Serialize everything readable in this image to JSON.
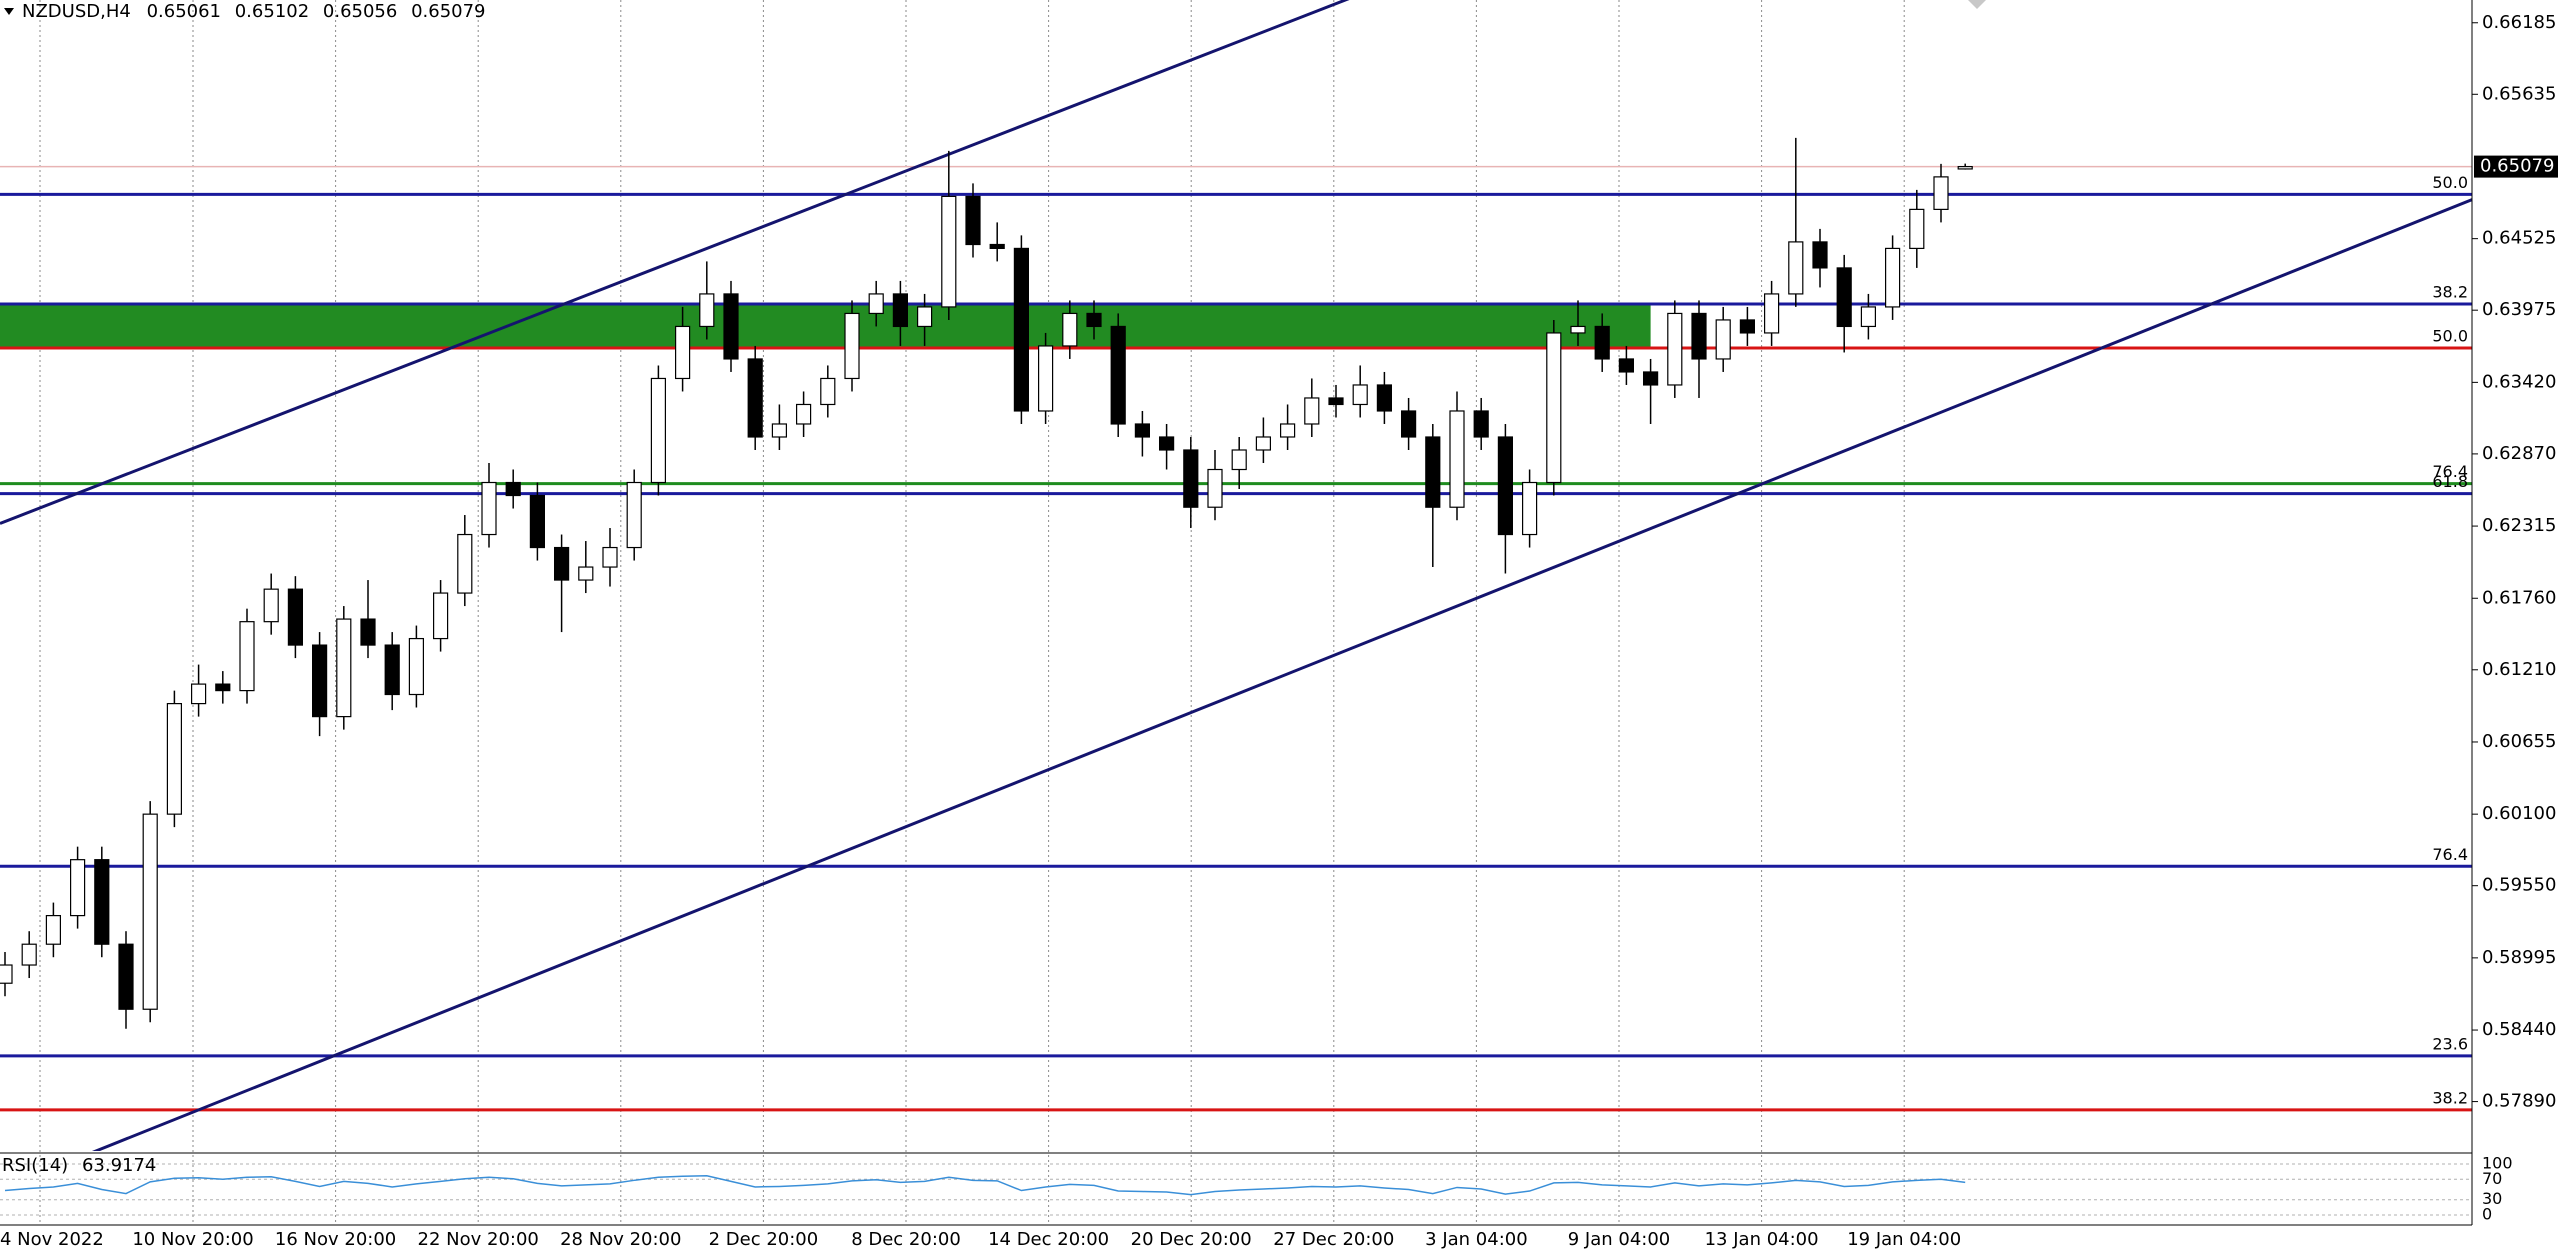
{
  "chart_data": {
    "type": "candlestick",
    "title": "NZDUSD,H4",
    "open": [
      0.588,
      0.5894,
      0.591,
      0.5932,
      0.5975,
      0.591,
      0.586,
      0.601,
      0.6095,
      0.611,
      0.6105,
      0.6158,
      0.6183,
      0.614,
      0.6085,
      0.616,
      0.614,
      0.6102,
      0.6145,
      0.618,
      0.6225,
      0.6265,
      0.6255,
      0.6215,
      0.619,
      0.62,
      0.6215,
      0.6265,
      0.6345,
      0.6385,
      0.641,
      0.636,
      0.63,
      0.631,
      0.6325,
      0.6345,
      0.6395,
      0.641,
      0.6385,
      0.64,
      0.6485,
      0.6448,
      0.6445,
      0.632,
      0.637,
      0.6395,
      0.6385,
      0.631,
      0.63,
      0.629,
      0.6246,
      0.6275,
      0.629,
      0.63,
      0.631,
      0.633,
      0.6325,
      0.634,
      0.632,
      0.63,
      0.6246,
      0.632,
      0.63,
      0.6225,
      0.6265,
      0.638,
      0.6385,
      0.636,
      0.635,
      0.634,
      0.6395,
      0.636,
      0.639,
      0.638,
      0.641,
      0.645,
      0.643,
      0.6385,
      0.64,
      0.6445,
      0.6475,
      0.65061
    ],
    "high": [
      0.5904,
      0.592,
      0.5942,
      0.5985,
      0.5985,
      0.592,
      0.602,
      0.6105,
      0.6125,
      0.612,
      0.6168,
      0.6195,
      0.6193,
      0.615,
      0.617,
      0.619,
      0.615,
      0.6155,
      0.619,
      0.624,
      0.628,
      0.6275,
      0.6265,
      0.6225,
      0.622,
      0.623,
      0.6275,
      0.6355,
      0.64,
      0.6435,
      0.642,
      0.637,
      0.6325,
      0.6335,
      0.6355,
      0.6405,
      0.642,
      0.642,
      0.641,
      0.652,
      0.6495,
      0.6465,
      0.6455,
      0.638,
      0.6405,
      0.6405,
      0.6395,
      0.632,
      0.631,
      0.63,
      0.629,
      0.63,
      0.6315,
      0.6325,
      0.6345,
      0.634,
      0.6355,
      0.635,
      0.633,
      0.631,
      0.6335,
      0.633,
      0.631,
      0.6275,
      0.639,
      0.6405,
      0.6395,
      0.637,
      0.636,
      0.6405,
      0.6405,
      0.64,
      0.64,
      0.642,
      0.653,
      0.646,
      0.644,
      0.641,
      0.6455,
      0.649,
      0.651,
      0.65102
    ],
    "low": [
      0.587,
      0.5884,
      0.59,
      0.5922,
      0.59,
      0.5845,
      0.585,
      0.6,
      0.6085,
      0.6095,
      0.6095,
      0.6148,
      0.613,
      0.607,
      0.6075,
      0.613,
      0.609,
      0.6092,
      0.6135,
      0.617,
      0.6215,
      0.6245,
      0.6205,
      0.615,
      0.618,
      0.6185,
      0.6205,
      0.6255,
      0.6335,
      0.6375,
      0.635,
      0.629,
      0.629,
      0.63,
      0.6315,
      0.6335,
      0.6385,
      0.637,
      0.637,
      0.639,
      0.6438,
      0.6435,
      0.631,
      0.631,
      0.636,
      0.6375,
      0.63,
      0.6285,
      0.6275,
      0.623,
      0.6236,
      0.626,
      0.628,
      0.629,
      0.63,
      0.6315,
      0.6315,
      0.631,
      0.629,
      0.62,
      0.6236,
      0.629,
      0.6195,
      0.6215,
      0.6255,
      0.637,
      0.635,
      0.634,
      0.631,
      0.633,
      0.633,
      0.635,
      0.637,
      0.637,
      0.64,
      0.6415,
      0.6365,
      0.6375,
      0.639,
      0.643,
      0.6465,
      0.65056
    ],
    "close": [
      0.5894,
      0.591,
      0.5932,
      0.5975,
      0.591,
      0.586,
      0.601,
      0.6095,
      0.611,
      0.6105,
      0.6158,
      0.6183,
      0.614,
      0.6085,
      0.616,
      0.614,
      0.6102,
      0.6145,
      0.618,
      0.6225,
      0.6265,
      0.6255,
      0.6215,
      0.619,
      0.62,
      0.6215,
      0.6265,
      0.6345,
      0.6385,
      0.641,
      0.636,
      0.63,
      0.631,
      0.6325,
      0.6345,
      0.6395,
      0.641,
      0.6385,
      0.64,
      0.6485,
      0.6448,
      0.6445,
      0.632,
      0.637,
      0.6395,
      0.6385,
      0.631,
      0.63,
      0.629,
      0.6246,
      0.6275,
      0.629,
      0.63,
      0.631,
      0.633,
      0.6325,
      0.634,
      0.632,
      0.63,
      0.6246,
      0.632,
      0.63,
      0.6225,
      0.6265,
      0.638,
      0.6385,
      0.636,
      0.635,
      0.634,
      0.6395,
      0.636,
      0.639,
      0.638,
      0.641,
      0.645,
      0.643,
      0.6385,
      0.64,
      0.6445,
      0.6475,
      0.65,
      0.65079
    ],
    "ylim": [
      0.5751,
      0.6636
    ],
    "yticks": [
      0.66185,
      0.65635,
      0.64525,
      0.63975,
      {
        "value": 0.6342,
        "label": "0.63420"
      },
      {
        "value": 0.6287,
        "label": "0.62870"
      },
      0.62315,
      {
        "value": 0.6176,
        "label": "0.61760"
      },
      {
        "value": 0.6121,
        "label": "0.61210"
      },
      0.60655,
      {
        "value": 0.601,
        "label": "0.60100"
      },
      {
        "value": 0.5955,
        "label": "0.59550"
      },
      0.58995,
      {
        "value": 0.5844,
        "label": "0.58440"
      },
      {
        "value": 0.5789,
        "label": "0.57890"
      }
    ],
    "x_labels": [
      "4 Nov 2022",
      "10 Nov 20:00",
      "16 Nov 20:00",
      "22 Nov 20:00",
      "28 Nov 20:00",
      "2 Dec 20:00",
      "8 Dec 20:00",
      "14 Dec 20:00",
      "20 Dec 20:00",
      "27 Dec 20:00",
      "3 Jan 04:00",
      "9 Jan 04:00",
      "13 Jan 04:00",
      "19 Jan 04:00"
    ],
    "levels": [
      {
        "value": 0.64865,
        "label": "50.0",
        "color": "#1a1a9c"
      },
      {
        "value": 0.64023,
        "label": "38.2",
        "color": "#1a1a9c"
      },
      {
        "value": 0.63684,
        "label": "50.0",
        "color": "#d81414"
      },
      {
        "value": 0.62641,
        "label": "76.4",
        "color": "#1e8c1e"
      },
      {
        "value": 0.62565,
        "label": "61.8",
        "color": "#1a1a9c"
      },
      {
        "value": 0.59699,
        "label": "76.4",
        "color": "#1a1a9c"
      },
      {
        "value": 0.58241,
        "label": "23.6",
        "color": "#1a1a9c"
      },
      {
        "value": 0.57826,
        "label": "38.2",
        "color": "#d81414"
      }
    ],
    "zone": {
      "y": [
        0.63684,
        0.64023
      ],
      "x_end": 68,
      "color": "#228b22"
    },
    "trendlines": [
      {
        "x": [
          0,
          50
        ],
        "y": [
          0.6235,
          0.6597
        ],
        "color": "#14146e"
      },
      {
        "x": [
          0,
          100
        ],
        "y": [
          0.5723,
          0.6468
        ],
        "color": "#14146e"
      }
    ],
    "bid_color": "#e8b4b4",
    "rsi": {
      "name": "RSI(14)",
      "color": "#3a8fd8",
      "ylim": [
        0,
        100
      ],
      "yticks": [
        100,
        70,
        30,
        0
      ],
      "values": [
        48,
        52,
        55,
        62,
        50,
        42,
        65,
        72,
        73,
        70,
        74,
        75,
        66,
        56,
        66,
        62,
        55,
        61,
        66,
        71,
        74,
        71,
        62,
        57,
        59,
        61,
        68,
        74,
        76,
        77,
        66,
        55,
        56,
        58,
        61,
        67,
        69,
        64,
        66,
        74,
        68,
        67,
        48,
        55,
        60,
        58,
        47,
        46,
        45,
        40,
        46,
        49,
        51,
        53,
        56,
        55,
        57,
        53,
        50,
        42,
        54,
        51,
        41,
        47,
        63,
        64,
        59,
        57,
        55,
        63,
        57,
        61,
        59,
        63,
        68,
        65,
        56,
        58,
        65,
        68,
        70,
        63.9174
      ]
    }
  }
}
